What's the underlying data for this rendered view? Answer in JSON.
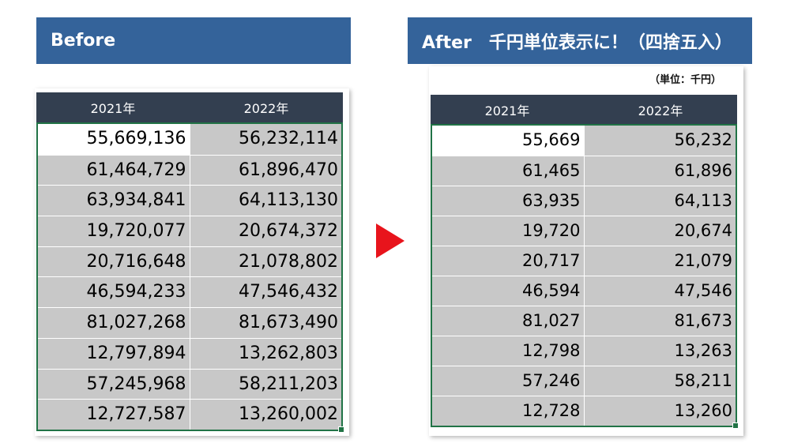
{
  "before": {
    "banner": "Before",
    "headers": [
      "2021年",
      "2022年"
    ],
    "rows": [
      [
        "55,669,136",
        "56,232,114"
      ],
      [
        "61,464,729",
        "61,896,470"
      ],
      [
        "63,934,841",
        "64,113,130"
      ],
      [
        "19,720,077",
        "20,674,372"
      ],
      [
        "20,716,648",
        "21,078,802"
      ],
      [
        "46,594,233",
        "47,546,432"
      ],
      [
        "81,027,268",
        "81,673,490"
      ],
      [
        "12,797,894",
        "13,262,803"
      ],
      [
        "57,245,968",
        "58,211,203"
      ],
      [
        "12,727,587",
        "13,260,002"
      ]
    ]
  },
  "after": {
    "banner": "After　千円単位表示に！（四捨五入）",
    "unit_label": "（単位：千円）",
    "headers": [
      "2021年",
      "2022年"
    ],
    "rows": [
      [
        "55,669",
        "56,232"
      ],
      [
        "61,465",
        "61,896"
      ],
      [
        "63,935",
        "64,113"
      ],
      [
        "19,720",
        "20,674"
      ],
      [
        "20,717",
        "21,079"
      ],
      [
        "46,594",
        "47,546"
      ],
      [
        "81,027",
        "81,673"
      ],
      [
        "12,798",
        "13,263"
      ],
      [
        "57,246",
        "58,211"
      ],
      [
        "12,728",
        "13,260"
      ]
    ]
  },
  "colors": {
    "banner": "#34639a",
    "header": "#333f50",
    "cell": "#c8c8c8",
    "selection": "#217346",
    "arrow": "#e8141c"
  },
  "icons": {
    "arrow": "right-triangle-arrow-icon"
  }
}
